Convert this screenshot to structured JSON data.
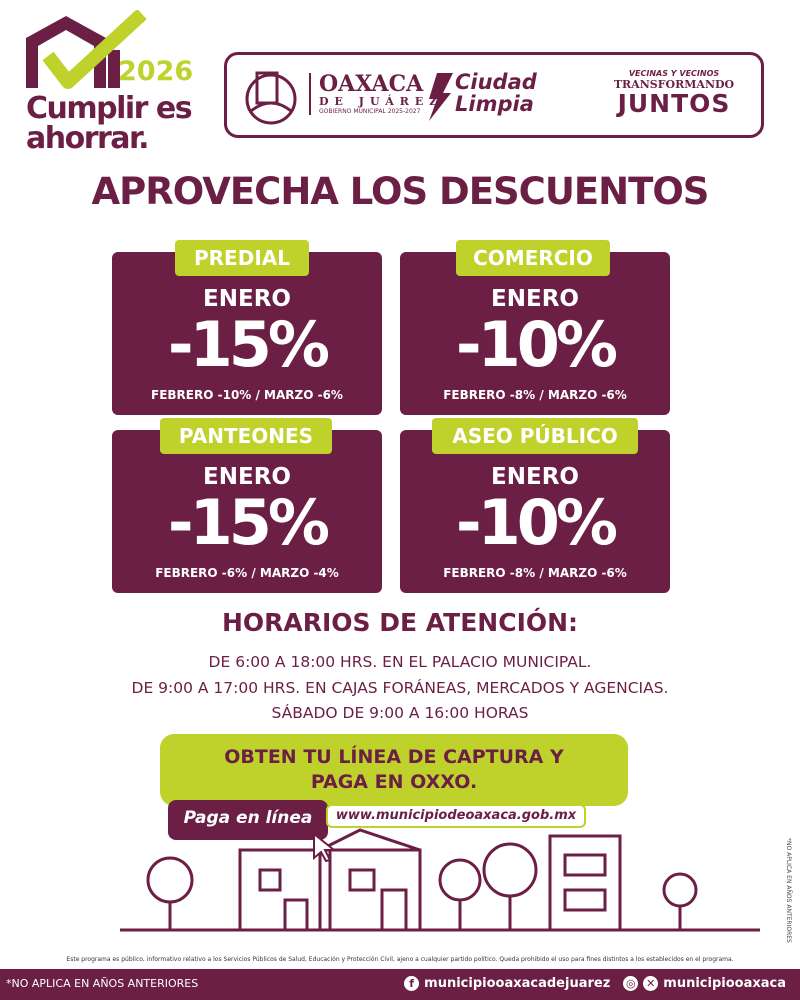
{
  "brand": {
    "year": "2026",
    "slogan_line1": "Cumplir es",
    "slogan_line2": "ahorrar."
  },
  "partners": {
    "oaxaca": {
      "name": "OAXACA",
      "sub": "DE JUÁREZ",
      "gov": "GOBIERNO MUNICIPAL 2025-2027"
    },
    "ciudad_limpia": {
      "line1": "Ciudad",
      "line2": "Limpia"
    },
    "juntos": {
      "line1": "VECINAS Y VECINOS",
      "line2": "TRANSFORMANDO",
      "line3": "JUNTOS"
    }
  },
  "headline": "APROVECHA LOS DESCUENTOS",
  "cards": [
    {
      "label": "PREDIAL",
      "month": "ENERO",
      "discount": "-15%",
      "rest": "FEBRERO -10% / MARZO -6%"
    },
    {
      "label": "COMERCIO",
      "month": "ENERO",
      "discount": "-10%",
      "rest": "FEBRERO -8% / MARZO -6%"
    },
    {
      "label": "PANTEONES",
      "month": "ENERO",
      "discount": "-15%",
      "rest": "FEBRERO -6% / MARZO -4%"
    },
    {
      "label": "ASEO PÚBLICO",
      "month": "ENERO",
      "discount": "-10%",
      "rest": "FEBRERO -8% / MARZO -6%"
    }
  ],
  "hours": {
    "title": "HORARIOS DE ATENCIÓN:",
    "lines": [
      "DE 6:00 A 18:00 HRS. EN EL PALACIO MUNICIPAL.",
      "DE 9:00 A 17:00 HRS. EN CAJAS FORÁNEAS, MERCADOS Y AGENCIAS.",
      "SÁBADO DE 9:00 A 16:00 HORAS"
    ]
  },
  "cta": {
    "line1": "OBTEN TU LÍNEA DE CAPTURA Y",
    "line2": "PAGA EN OXXO.",
    "pay_online": "Paga en línea",
    "url": "www.municipiodeoaxaca.gob.mx"
  },
  "side_note": "*NO APLICA EN AÑOS ANTERIORES",
  "disclaimer": "Este programa es público, informativo relativo a los Servicios Públicos de Salud, Educación y Protección Civil, ajeno a cualquier partido político. Queda prohibido el uso para fines distintos a los establecidos en el programa.",
  "footer": {
    "note": "*NO APLICA EN AÑOS ANTERIORES",
    "facebook": "municipiooaxacadejuarez",
    "instagram_x": "municipiooaxaca"
  },
  "colors": {
    "maroon": "#6b1f45",
    "lime": "#bfd22b"
  }
}
